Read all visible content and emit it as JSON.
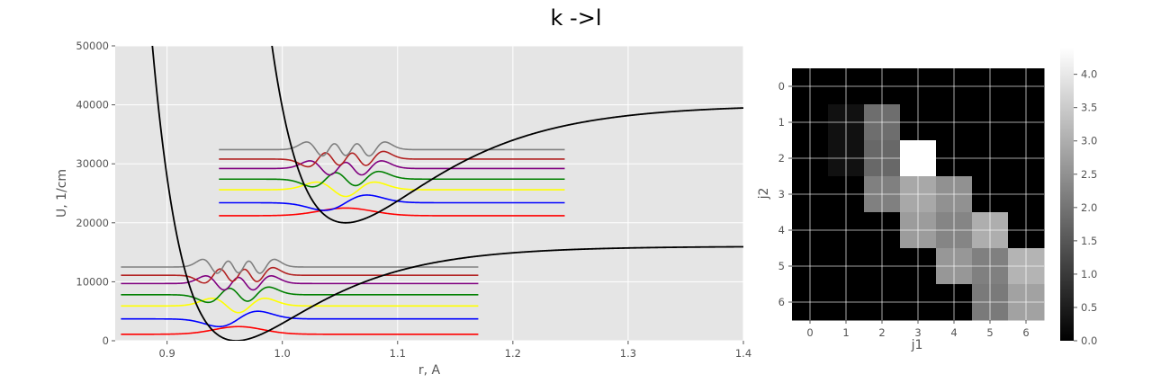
{
  "figure": {
    "title": "k ->l"
  },
  "chart_data": [
    {
      "type": "line",
      "xlabel": "r, A",
      "ylabel": "U, 1/cm",
      "xlim": [
        0.855,
        1.4
      ],
      "ylim": [
        0,
        50000
      ],
      "xticks": [
        0.9,
        1.0,
        1.1,
        1.2,
        1.3,
        1.4
      ],
      "xtick_labels": [
        "0.9",
        "1.0",
        "1.1",
        "1.2",
        "1.3",
        "1.4"
      ],
      "yticks": [
        0,
        10000,
        20000,
        30000,
        40000,
        50000
      ],
      "ytick_labels": [
        "0",
        "10000",
        "20000",
        "30000",
        "40000",
        "50000"
      ],
      "grid": true,
      "background": "#e5e5e5",
      "curves": [
        {
          "kind": "potential",
          "color": "#000000",
          "r_min": 0.96,
          "U_min": 0,
          "D_e": 16000,
          "a": 14.0
        },
        {
          "kind": "potential",
          "color": "#000000",
          "r_min": 1.055,
          "U_min": 20000,
          "D_e": 20000,
          "a": 12.5
        }
      ],
      "wavefunction_sets": [
        {
          "r_range": [
            0.86,
            1.17
          ],
          "center": 0.962,
          "omega": 2450,
          "spacing": 2150,
          "width": 0.021,
          "amplitude": 1300,
          "levels": [
            {
              "v": 0,
              "baseline": 1100,
              "color": "#ff0000"
            },
            {
              "v": 1,
              "baseline": 3700,
              "color": "#0000ff"
            },
            {
              "v": 2,
              "baseline": 5900,
              "color": "#ffff00"
            },
            {
              "v": 3,
              "baseline": 7800,
              "color": "#008000"
            },
            {
              "v": 4,
              "baseline": 9700,
              "color": "#800080"
            },
            {
              "v": 5,
              "baseline": 11100,
              "color": "#b22222"
            },
            {
              "v": 6,
              "baseline": 12500,
              "color": "#808080"
            }
          ]
        },
        {
          "r_range": [
            0.945,
            1.245
          ],
          "center": 1.055,
          "omega": 2450,
          "spacing": 2150,
          "width": 0.023,
          "amplitude": 1300,
          "levels": [
            {
              "v": 0,
              "baseline": 21200,
              "color": "#ff0000"
            },
            {
              "v": 1,
              "baseline": 23400,
              "color": "#0000ff"
            },
            {
              "v": 2,
              "baseline": 25600,
              "color": "#ffff00"
            },
            {
              "v": 3,
              "baseline": 27400,
              "color": "#008000"
            },
            {
              "v": 4,
              "baseline": 29200,
              "color": "#800080"
            },
            {
              "v": 5,
              "baseline": 30800,
              "color": "#b22222"
            },
            {
              "v": 6,
              "baseline": 32400,
              "color": "#808080"
            }
          ]
        }
      ]
    },
    {
      "type": "heatmap",
      "xlabel": "j1",
      "ylabel": "j2",
      "x_categories": [
        "0",
        "1",
        "2",
        "3",
        "4",
        "5",
        "6"
      ],
      "y_categories": [
        "0",
        "1",
        "2",
        "3",
        "4",
        "5",
        "6"
      ],
      "colormap": "gray",
      "vmin": 0,
      "vmax": 4.4,
      "values": [
        [
          0.0,
          0.0,
          0.0,
          0.0,
          0.0,
          0.0,
          0.0
        ],
        [
          0.0,
          0.3,
          1.9,
          0.0,
          0.0,
          0.0,
          0.0
        ],
        [
          0.0,
          0.3,
          1.8,
          4.4,
          0.0,
          0.0,
          0.0
        ],
        [
          0.0,
          0.0,
          2.2,
          2.9,
          2.5,
          0.0,
          0.0
        ],
        [
          0.0,
          0.0,
          0.0,
          2.7,
          2.3,
          3.0,
          0.0
        ],
        [
          0.0,
          0.0,
          0.0,
          0.0,
          2.6,
          2.2,
          3.1
        ],
        [
          0.0,
          0.0,
          0.0,
          0.0,
          0.0,
          2.1,
          2.8
        ]
      ],
      "colorbar": {
        "ticks": [
          0.0,
          0.5,
          1.0,
          1.5,
          2.0,
          2.5,
          3.0,
          3.5,
          4.0
        ],
        "tick_labels": [
          "0.0",
          "0.5",
          "1.0",
          "1.5",
          "2.0",
          "2.5",
          "3.0",
          "3.5",
          "4.0"
        ]
      }
    }
  ]
}
